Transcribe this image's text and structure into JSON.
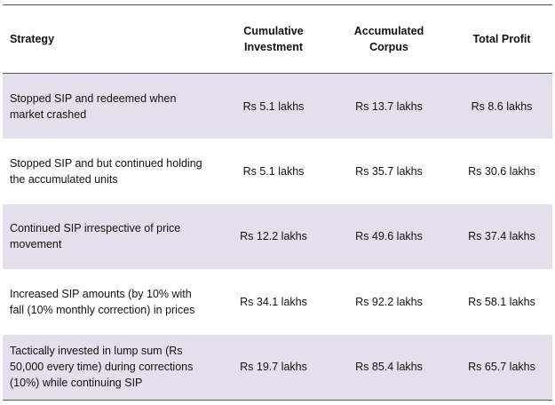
{
  "table": {
    "header": [
      "Strategy",
      "Cumulative Investment",
      "Accumulated Corpus",
      "Total Profit"
    ],
    "rows": [
      [
        "Stopped SIP and redeemed when market crashed",
        "Rs 5.1 lakhs",
        "Rs 13.7 lakhs",
        "Rs 8.6 lakhs"
      ],
      [
        "Stopped SIP and but continued holding the accumulated units",
        "Rs 5.1 lakhs",
        "Rs 35.7 lakhs",
        "Rs 30.6 lakhs"
      ],
      [
        "Continued SIP irrespective of price movement",
        "Rs 12.2 lakhs",
        "Rs 49.6 lakhs",
        "Rs 37.4 lakhs"
      ],
      [
        "Increased SIP amounts (by 10% with fall (10% monthly correction) in prices",
        "Rs 34.1 lakhs",
        "Rs 92.2 lakhs",
        "Rs 58.1 lakhs"
      ],
      [
        "Tactically invested in lump sum (Rs 50,000 every time) during corrections (10%) while continuing SIP",
        "Rs 19.7 lakhs",
        "Rs 85.4 lakhs",
        "Rs 65.7 lakhs"
      ]
    ]
  }
}
